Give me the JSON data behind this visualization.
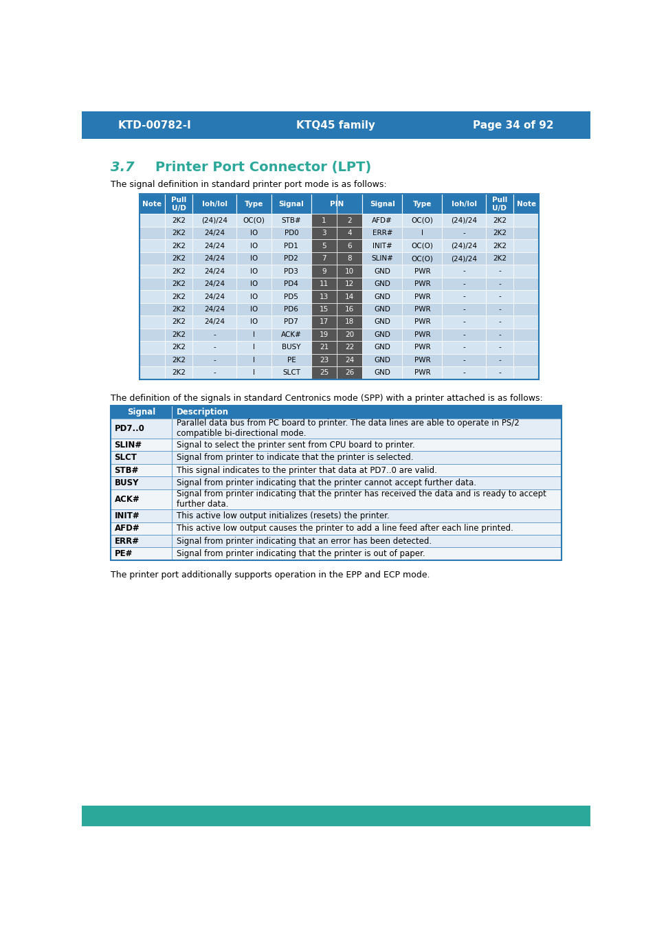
{
  "header_bg": "#2878b4",
  "teal_color": "#2ba89a",
  "section_title_color": "#2ba89a",
  "page_title_left": "KTD-00782-I",
  "page_title_center": "KTQ45 family",
  "page_title_right": "Page 34 of 92",
  "section_number": "3.7",
  "section_title": "Printer Port Connector (LPT)",
  "intro_text1": "The signal definition in standard printer port mode is as follows:",
  "intro_text2": "The definition of the signals in standard Centronics mode (SPP) with a printer attached is as follows:",
  "footer_text": "The printer port additionally supports operation in the EPP and ECP mode.",
  "table1_rows": [
    [
      "",
      "2K2",
      "(24)/24",
      "OC(O)",
      "STB#",
      "1",
      "2",
      "AFD#",
      "OC(O)",
      "(24)/24",
      "2K2",
      ""
    ],
    [
      "",
      "2K2",
      "24/24",
      "IO",
      "PD0",
      "3",
      "4",
      "ERR#",
      "I",
      "-",
      "2K2",
      ""
    ],
    [
      "",
      "2K2",
      "24/24",
      "IO",
      "PD1",
      "5",
      "6",
      "INIT#",
      "OC(O)",
      "(24)/24",
      "2K2",
      ""
    ],
    [
      "",
      "2K2",
      "24/24",
      "IO",
      "PD2",
      "7",
      "8",
      "SLIN#",
      "OC(O)",
      "(24)/24",
      "2K2",
      ""
    ],
    [
      "",
      "2K2",
      "24/24",
      "IO",
      "PD3",
      "9",
      "10",
      "GND",
      "PWR",
      "-",
      "-",
      ""
    ],
    [
      "",
      "2K2",
      "24/24",
      "IO",
      "PD4",
      "11",
      "12",
      "GND",
      "PWR",
      "-",
      "-",
      ""
    ],
    [
      "",
      "2K2",
      "24/24",
      "IO",
      "PD5",
      "13",
      "14",
      "GND",
      "PWR",
      "-",
      "-",
      ""
    ],
    [
      "",
      "2K2",
      "24/24",
      "IO",
      "PD6",
      "15",
      "16",
      "GND",
      "PWR",
      "-",
      "-",
      ""
    ],
    [
      "",
      "2K2",
      "24/24",
      "IO",
      "PD7",
      "17",
      "18",
      "GND",
      "PWR",
      "-",
      "-",
      ""
    ],
    [
      "",
      "2K2",
      "-",
      "I",
      "ACK#",
      "19",
      "20",
      "GND",
      "PWR",
      "-",
      "-",
      ""
    ],
    [
      "",
      "2K2",
      "-",
      "I",
      "BUSY",
      "21",
      "22",
      "GND",
      "PWR",
      "-",
      "-",
      ""
    ],
    [
      "",
      "2K2",
      "-",
      "I",
      "PE",
      "23",
      "24",
      "GND",
      "PWR",
      "-",
      "-",
      ""
    ],
    [
      "",
      "2K2",
      "-",
      "I",
      "SLCT",
      "25",
      "26",
      "GND",
      "PWR",
      "-",
      "-",
      ""
    ]
  ],
  "table2_rows": [
    [
      "PD7..0",
      "Parallel data bus from PC board to printer. The data lines are able to operate in PS/2\ncompatible bi-directional mode."
    ],
    [
      "SLIN#",
      "Signal to select the printer sent from CPU board to printer."
    ],
    [
      "SLCT",
      "Signal from printer to indicate that the printer is selected."
    ],
    [
      "STB#",
      "This signal indicates to the printer that data at PD7..0 are valid."
    ],
    [
      "BUSY",
      "Signal from printer indicating that the printer cannot accept further data."
    ],
    [
      "ACK#",
      "Signal from printer indicating that the printer has received the data and is ready to accept\nfurther data."
    ],
    [
      "INIT#",
      "This active low output initializes (resets) the printer."
    ],
    [
      "AFD#",
      "This active low output causes the printer to add a line feed after each line printed."
    ],
    [
      "ERR#",
      "Signal from printer indicating that an error has been detected."
    ],
    [
      "PE#",
      "Signal from printer indicating that the printer is out of paper."
    ]
  ],
  "pin_col_bg": "#555555",
  "pin_text_color": "#ffffff",
  "border_color": "#2878b4",
  "bg_color": "#ffffff",
  "row_even": "#d4e4f0",
  "row_odd": "#c2d6e8",
  "t2_row_even": "#e4edf6",
  "t2_row_odd": "#f2f5f8"
}
